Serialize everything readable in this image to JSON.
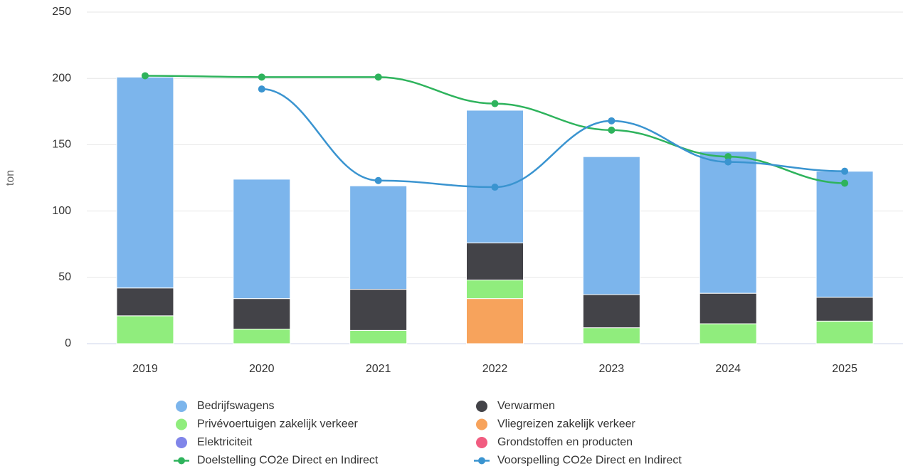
{
  "chart_data": {
    "type": "bar",
    "y_label": "ton",
    "categories": [
      "2019",
      "2020",
      "2021",
      "2022",
      "2023",
      "2024",
      "2025"
    ],
    "ylim": [
      0,
      250
    ],
    "yticks": [
      0,
      50,
      100,
      150,
      200,
      250
    ],
    "grid": true,
    "stacked": true,
    "series": [
      {
        "name": "Bedrijfswagens",
        "type": "bar",
        "color": "#7cb5ec",
        "values": [
          159,
          90,
          78,
          100,
          104,
          107,
          95
        ]
      },
      {
        "name": "Verwarmen",
        "type": "bar",
        "color": "#434348",
        "values": [
          21,
          23,
          31,
          28,
          25,
          23,
          18
        ]
      },
      {
        "name": "Privévoertuigen zakelijk verkeer",
        "type": "bar",
        "color": "#90ed7d",
        "values": [
          21,
          11,
          10,
          14,
          12,
          15,
          17
        ]
      },
      {
        "name": "Vliegreizen zakelijk verkeer",
        "type": "bar",
        "color": "#f7a35c",
        "values": [
          0,
          0,
          0,
          34,
          0,
          0,
          0
        ]
      },
      {
        "name": "Elektriciteit",
        "type": "bar",
        "color": "#8085e9",
        "values": [
          0,
          0,
          0,
          0,
          0,
          0,
          0
        ]
      },
      {
        "name": "Grondstoffen en producten",
        "type": "bar",
        "color": "#f15c80",
        "values": [
          0,
          0,
          0,
          0,
          0,
          0,
          0
        ]
      },
      {
        "name": "Doelstelling CO2e Direct en Indirect",
        "type": "line",
        "color": "#2eb35c",
        "values": [
          202,
          201,
          201,
          181,
          161,
          141,
          121
        ]
      },
      {
        "name": "Voorspelling CO2e Direct en Indirect",
        "type": "line",
        "color": "#3a94d0",
        "values": [
          null,
          192,
          123,
          118,
          168,
          137,
          130
        ]
      }
    ]
  }
}
